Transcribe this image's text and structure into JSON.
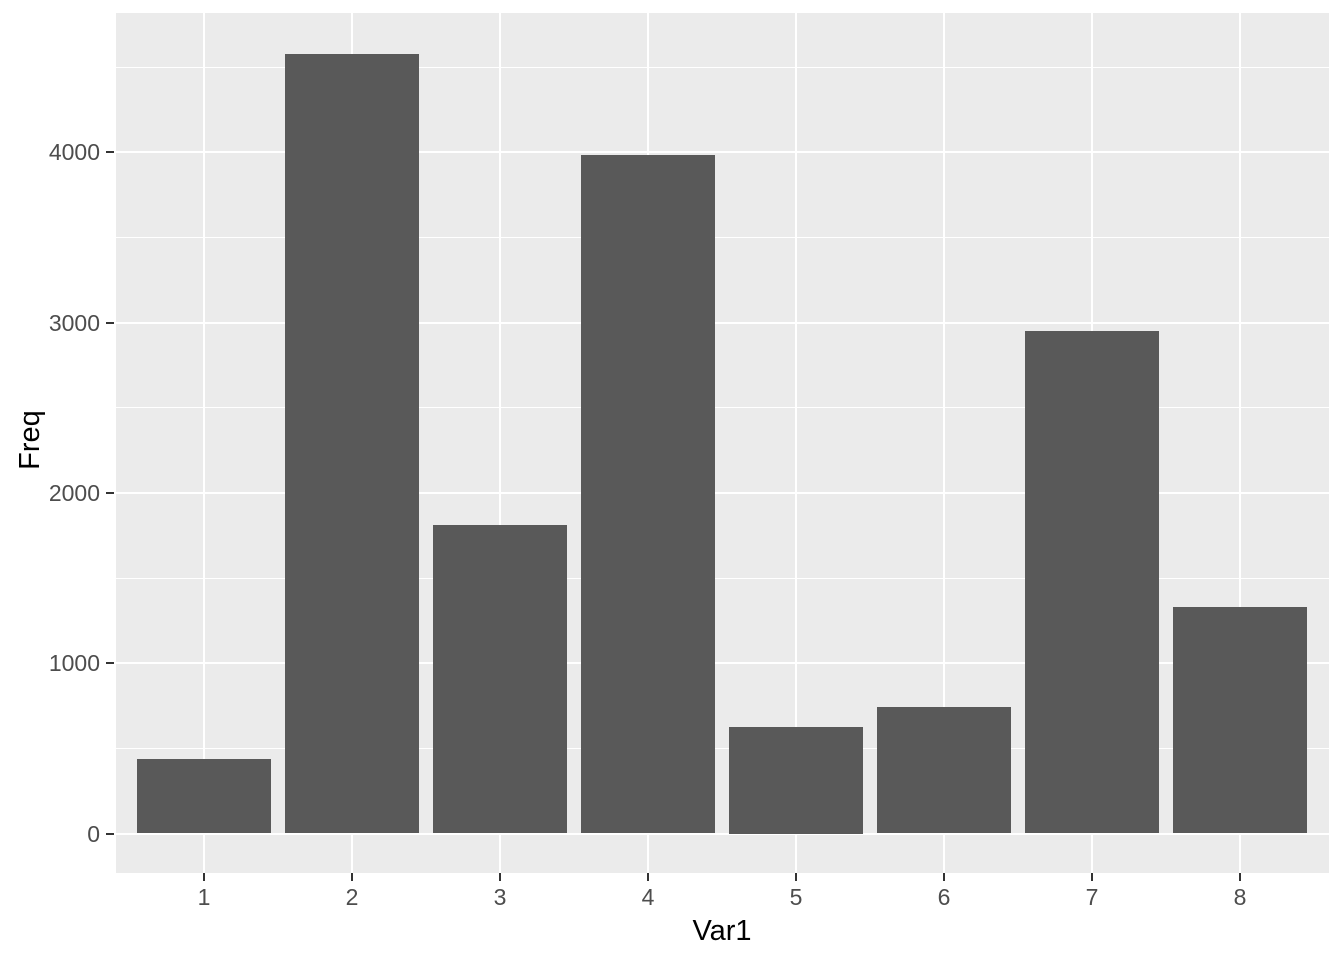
{
  "chart_data": {
    "type": "bar",
    "title": "",
    "xlabel": "Var1",
    "ylabel": "Freq",
    "categories": [
      "1",
      "2",
      "3",
      "4",
      "5",
      "6",
      "7",
      "8"
    ],
    "values": [
      440,
      4580,
      1810,
      3985,
      625,
      743,
      2950,
      1330
    ],
    "series_name": "Freq",
    "ylim": [
      -230,
      4810
    ],
    "y_major_ticks": [
      0,
      1000,
      2000,
      3000,
      4000
    ],
    "y_minor_ticks": [
      500,
      1500,
      2500,
      3500,
      4500
    ],
    "grid": "horizontal major+minor, vertical major at category centers",
    "legend": "none",
    "style": "ggplot2-theme-grey",
    "colors": {
      "bar_fill": "#595959",
      "panel_background": "#EBEBEB",
      "gridline": "#FFFFFF",
      "tick_label": "#4D4D4D",
      "tick_mark": "#333333",
      "axis_title": "#000000",
      "page_background": "#FFFFFF"
    }
  }
}
